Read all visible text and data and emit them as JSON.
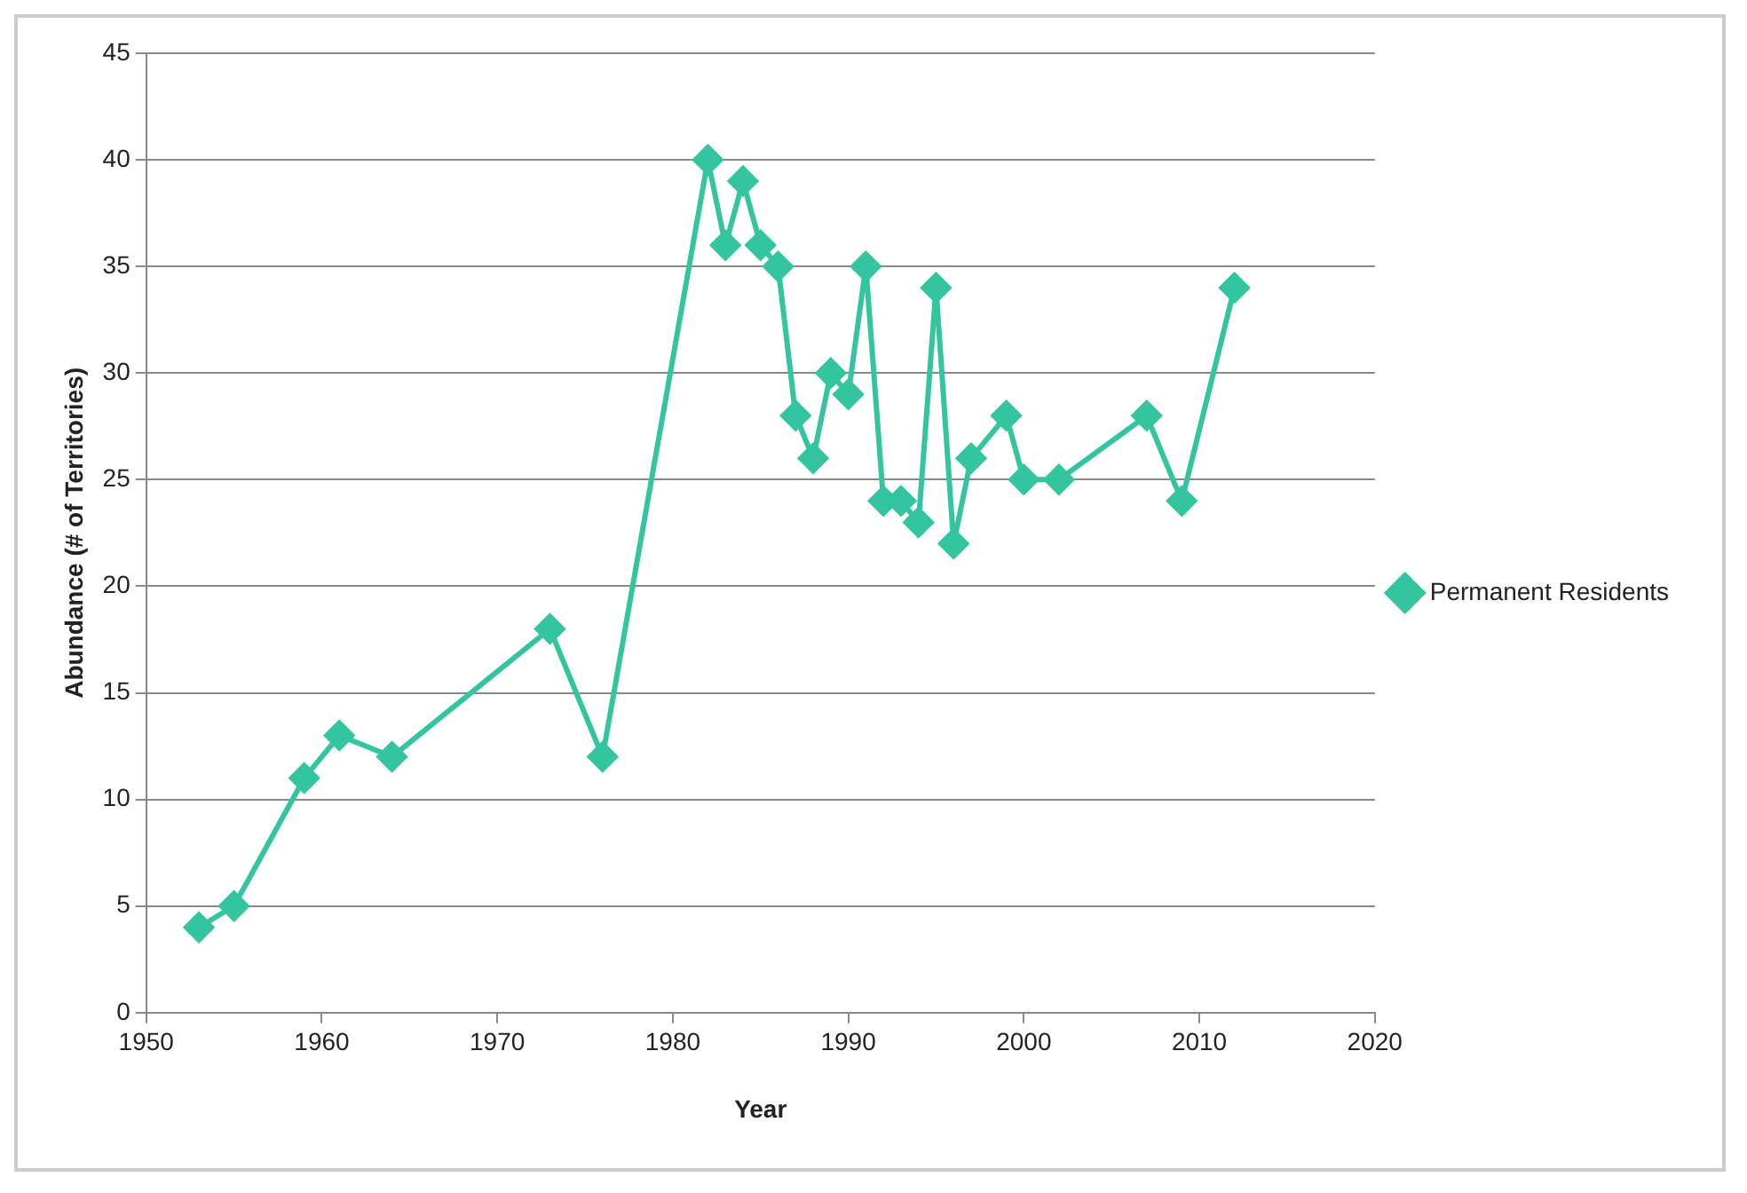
{
  "chart_data": {
    "type": "line",
    "xlabel": "Year",
    "ylabel": "Abundance (# of Territories)",
    "xlim": [
      1950,
      2020
    ],
    "xticks": [
      1950,
      1960,
      1970,
      1980,
      1990,
      2000,
      2010,
      2020
    ],
    "ylim": [
      0,
      45
    ],
    "yticks": [
      0,
      5,
      10,
      15,
      20,
      25,
      30,
      35,
      40,
      45
    ],
    "grid": "y",
    "legend": "right",
    "marker": "diamond",
    "line_style": "solid",
    "series": [
      {
        "name": "Permanent Residents",
        "color": "#33c4a0",
        "x": [
          1953,
          1955,
          1959,
          1961,
          1964,
          1973,
          1976,
          1982,
          1983,
          1984,
          1985,
          1986,
          1987,
          1988,
          1989,
          1990,
          1991,
          1992,
          1993,
          1994,
          1995,
          1996,
          1997,
          1999,
          2000,
          2002,
          2007,
          2009,
          2012
        ],
        "values": [
          4,
          5,
          11,
          13,
          12,
          18,
          12,
          40,
          36,
          39,
          36,
          35,
          28,
          26,
          30,
          29,
          35,
          24,
          24,
          23,
          34,
          22,
          26,
          28,
          25,
          25,
          28,
          24,
          34
        ]
      }
    ]
  }
}
